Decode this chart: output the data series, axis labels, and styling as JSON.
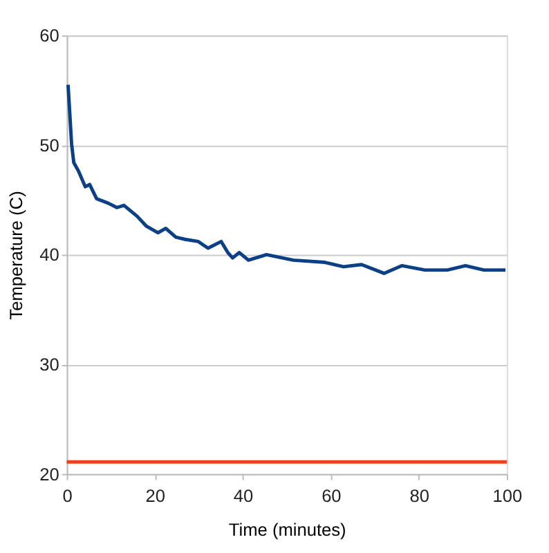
{
  "chart_data": {
    "type": "line",
    "xlabel": "Time (minutes)",
    "ylabel": "Temperature (C)",
    "xlim": [
      0,
      100
    ],
    "xticks": [
      0,
      20,
      40,
      60,
      80,
      100
    ],
    "ylim": [
      20,
      60
    ],
    "yticks": [
      20,
      30,
      40,
      50,
      60
    ],
    "grid": "y",
    "legend": false,
    "series": [
      {
        "color": "#0b3f86",
        "x": [
          0.3,
          1.1,
          1.6,
          2.7,
          4.2,
          5.2,
          6.8,
          9.4,
          11.4,
          13.0,
          16.0,
          18.1,
          20.7,
          22.5,
          24.8,
          26.9,
          29.9,
          32.1,
          35.1,
          36.6,
          37.7,
          39.2,
          41.3,
          45.4,
          51.5,
          58.7,
          62.9,
          67.0,
          72.1,
          76.2,
          81.4,
          86.5,
          90.6,
          94.8,
          99.7
        ],
        "values": [
          55.5,
          50.1,
          48.4,
          47.6,
          46.2,
          46.4,
          45.1,
          44.7,
          44.3,
          44.5,
          43.5,
          42.6,
          42.0,
          42.4,
          41.6,
          41.4,
          41.2,
          40.6,
          41.2,
          40.2,
          39.7,
          40.2,
          39.5,
          40.0,
          39.5,
          39.3,
          38.9,
          39.1,
          38.3,
          39.0,
          38.6,
          38.6,
          39.0,
          38.6,
          38.6
        ]
      },
      {
        "color": "#e8461a",
        "x": [
          0,
          100
        ],
        "values": [
          21.1,
          21.1
        ]
      }
    ]
  }
}
